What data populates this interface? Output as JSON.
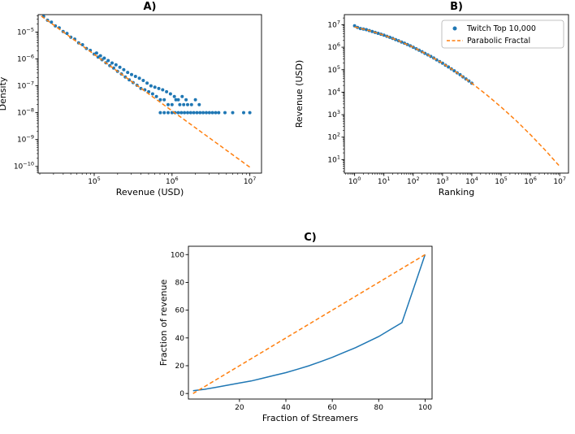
{
  "figure": {
    "background": "#ffffff",
    "colors": {
      "blue": "#1f77b4",
      "orange": "#ff7f0e"
    }
  },
  "chart_data": [
    {
      "id": "A",
      "type": "scatter",
      "title": "A)",
      "xlabel": "Revenue (USD)",
      "ylabel": "Density",
      "xscale": "log",
      "yscale": "log",
      "xlim_log10": [
        4.28,
        7.15
      ],
      "ylim_log10": [
        -10.25,
        -4.35
      ],
      "xticks_log10": [
        5,
        6,
        7
      ],
      "yticks_log10": [
        -5,
        -6,
        -7,
        -8,
        -9,
        -10
      ],
      "grid": false,
      "series": [
        {
          "name": "revenue-density-scatter",
          "kind": "scatter",
          "color": "#1f77b4",
          "marker_size": 2,
          "points_log10": [
            [
              4.35,
              -4.42
            ],
            [
              4.4,
              -4.56
            ],
            [
              4.45,
              -4.63
            ],
            [
              4.5,
              -4.77
            ],
            [
              4.55,
              -4.84
            ],
            [
              4.6,
              -4.98
            ],
            [
              4.65,
              -5.05
            ],
            [
              4.7,
              -5.19
            ],
            [
              4.75,
              -5.26
            ],
            [
              4.8,
              -5.4
            ],
            [
              4.85,
              -5.47
            ],
            [
              4.9,
              -5.61
            ],
            [
              4.95,
              -5.68
            ],
            [
              5.0,
              -5.82
            ],
            [
              5.03,
              -5.78
            ],
            [
              5.05,
              -5.93
            ],
            [
              5.08,
              -5.88
            ],
            [
              5.1,
              -6.03
            ],
            [
              5.13,
              -5.97
            ],
            [
              5.15,
              -6.14
            ],
            [
              5.18,
              -6.06
            ],
            [
              5.2,
              -6.25
            ],
            [
              5.23,
              -6.15
            ],
            [
              5.25,
              -6.34
            ],
            [
              5.28,
              -6.22
            ],
            [
              5.3,
              -6.46
            ],
            [
              5.33,
              -6.31
            ],
            [
              5.35,
              -6.56
            ],
            [
              5.38,
              -6.4
            ],
            [
              5.4,
              -6.67
            ],
            [
              5.43,
              -6.5
            ],
            [
              5.45,
              -6.78
            ],
            [
              5.48,
              -6.58
            ],
            [
              5.5,
              -6.88
            ],
            [
              5.53,
              -6.65
            ],
            [
              5.55,
              -6.98
            ],
            [
              5.58,
              -6.72
            ],
            [
              5.6,
              -7.1
            ],
            [
              5.63,
              -6.8
            ],
            [
              5.65,
              -7.15
            ],
            [
              5.68,
              -6.9
            ],
            [
              5.7,
              -7.22
            ],
            [
              5.73,
              -7.0
            ],
            [
              5.75,
              -7.3
            ],
            [
              5.78,
              -7.05
            ],
            [
              5.8,
              -7.4
            ],
            [
              5.83,
              -7.1
            ],
            [
              5.85,
              -7.52
            ],
            [
              5.88,
              -7.15
            ],
            [
              5.9,
              -7.52
            ],
            [
              5.93,
              -7.22
            ],
            [
              5.95,
              -7.7
            ],
            [
              5.98,
              -7.3
            ],
            [
              6.0,
              -7.7
            ],
            [
              6.03,
              -7.4
            ],
            [
              6.05,
              -7.52
            ],
            [
              6.08,
              -7.52
            ],
            [
              6.1,
              -7.7
            ],
            [
              6.13,
              -7.4
            ],
            [
              6.15,
              -7.7
            ],
            [
              6.18,
              -7.52
            ],
            [
              6.2,
              -7.7
            ],
            [
              6.25,
              -7.7
            ],
            [
              6.3,
              -7.52
            ],
            [
              6.35,
              -7.7
            ],
            [
              5.85,
              -8.0
            ],
            [
              5.9,
              -8.0
            ],
            [
              5.95,
              -8.0
            ],
            [
              6.0,
              -8.0
            ],
            [
              6.04,
              -8.0
            ],
            [
              6.08,
              -8.0
            ],
            [
              6.12,
              -8.0
            ],
            [
              6.16,
              -8.0
            ],
            [
              6.2,
              -8.0
            ],
            [
              6.24,
              -8.0
            ],
            [
              6.28,
              -8.0
            ],
            [
              6.32,
              -8.0
            ],
            [
              6.36,
              -8.0
            ],
            [
              6.4,
              -8.0
            ],
            [
              6.44,
              -8.0
            ],
            [
              6.48,
              -8.0
            ],
            [
              6.52,
              -8.0
            ],
            [
              6.56,
              -8.0
            ],
            [
              6.6,
              -8.0
            ],
            [
              6.68,
              -8.0
            ],
            [
              6.78,
              -8.0
            ],
            [
              6.92,
              -8.0
            ],
            [
              7.0,
              -8.0
            ]
          ]
        },
        {
          "name": "power-law-fit",
          "kind": "line",
          "dashed": true,
          "color": "#ff7f0e",
          "points_log10": [
            [
              4.32,
              -4.4
            ],
            [
              7.02,
              -10.07
            ]
          ]
        }
      ]
    },
    {
      "id": "B",
      "type": "scatter",
      "title": "B)",
      "xlabel": "Ranking",
      "ylabel": "Revenue (USD)",
      "xscale": "log",
      "yscale": "log",
      "xlim_log10": [
        -0.35,
        7.3
      ],
      "ylim_log10": [
        0.4,
        7.45
      ],
      "xticks_log10": [
        0,
        1,
        2,
        3,
        4,
        5,
        6,
        7
      ],
      "yticks_log10": [
        1,
        2,
        3,
        4,
        5,
        6,
        7
      ],
      "grid": false,
      "legend": {
        "position": "upper-right",
        "items": [
          {
            "label": "Twitch Top 10,000",
            "kind": "scatter",
            "color": "#1f77b4"
          },
          {
            "label": "Parabolic Fractal",
            "kind": "dashed-line",
            "color": "#ff7f0e"
          }
        ]
      },
      "series": [
        {
          "name": "twitch-top-10000",
          "kind": "scatter",
          "color": "#1f77b4",
          "marker_size": 2,
          "points_log10": [
            [
              0.0,
              6.95
            ],
            [
              0.1,
              6.88
            ],
            [
              0.2,
              6.83
            ],
            [
              0.3,
              6.81
            ],
            [
              0.4,
              6.78
            ],
            [
              0.5,
              6.74
            ],
            [
              0.6,
              6.7
            ],
            [
              0.7,
              6.66
            ],
            [
              0.8,
              6.62
            ],
            [
              0.9,
              6.58
            ],
            [
              1.0,
              6.54
            ],
            [
              1.1,
              6.49
            ],
            [
              1.2,
              6.44
            ],
            [
              1.3,
              6.39
            ],
            [
              1.4,
              6.34
            ],
            [
              1.5,
              6.29
            ],
            [
              1.6,
              6.23
            ],
            [
              1.7,
              6.18
            ],
            [
              1.8,
              6.12
            ],
            [
              1.9,
              6.06
            ],
            [
              2.0,
              6.0
            ],
            [
              2.1,
              5.93
            ],
            [
              2.2,
              5.87
            ],
            [
              2.3,
              5.8
            ],
            [
              2.4,
              5.73
            ],
            [
              2.5,
              5.66
            ],
            [
              2.6,
              5.59
            ],
            [
              2.7,
              5.52
            ],
            [
              2.8,
              5.44
            ],
            [
              2.9,
              5.36
            ],
            [
              3.0,
              5.29
            ],
            [
              3.1,
              5.2
            ],
            [
              3.2,
              5.12
            ],
            [
              3.3,
              5.04
            ],
            [
              3.4,
              4.95
            ],
            [
              3.5,
              4.86
            ],
            [
              3.6,
              4.78
            ],
            [
              3.7,
              4.68
            ],
            [
              3.8,
              4.59
            ],
            [
              3.9,
              4.5
            ],
            [
              4.0,
              4.4
            ]
          ]
        },
        {
          "name": "parabolic-fractal-fit",
          "kind": "line",
          "dashed": true,
          "color": "#ff7f0e",
          "points_log10": [
            [
              0.0,
              6.9
            ],
            [
              0.5,
              6.74
            ],
            [
              1.0,
              6.54
            ],
            [
              1.5,
              6.29
            ],
            [
              2.0,
              6.0
            ],
            [
              2.5,
              5.66
            ],
            [
              3.0,
              5.29
            ],
            [
              3.5,
              4.86
            ],
            [
              4.0,
              4.4
            ],
            [
              4.5,
              3.89
            ],
            [
              5.0,
              3.34
            ],
            [
              5.5,
              2.75
            ],
            [
              6.0,
              2.11
            ],
            [
              6.5,
              1.43
            ],
            [
              7.0,
              0.7
            ]
          ]
        }
      ]
    },
    {
      "id": "C",
      "type": "line",
      "title": "C)",
      "xlabel": "Fraction of Streamers",
      "ylabel": "Fraction of revenue",
      "xscale": "linear",
      "yscale": "linear",
      "xlim": [
        -2,
        103
      ],
      "ylim": [
        -4,
        106
      ],
      "xticks": [
        20,
        40,
        60,
        80,
        100
      ],
      "yticks": [
        0,
        20,
        40,
        60,
        80,
        100
      ],
      "grid": false,
      "series": [
        {
          "name": "lorenz-curve",
          "kind": "line",
          "dashed": false,
          "color": "#1f77b4",
          "points": [
            [
              0,
              2
            ],
            [
              5,
              3
            ],
            [
              10,
              4.5
            ],
            [
              15,
              6
            ],
            [
              20,
              7.5
            ],
            [
              25,
              9
            ],
            [
              30,
              11
            ],
            [
              35,
              13
            ],
            [
              40,
              15
            ],
            [
              45,
              17.5
            ],
            [
              50,
              20
            ],
            [
              55,
              23
            ],
            [
              60,
              26
            ],
            [
              65,
              29.5
            ],
            [
              70,
              33
            ],
            [
              75,
              37
            ],
            [
              80,
              41
            ],
            [
              85,
              46
            ],
            [
              90,
              51
            ],
            [
              100,
              100
            ]
          ]
        },
        {
          "name": "equality-line",
          "kind": "line",
          "dashed": true,
          "color": "#ff7f0e",
          "points": [
            [
              0,
              0
            ],
            [
              100,
              100
            ]
          ]
        }
      ]
    }
  ]
}
